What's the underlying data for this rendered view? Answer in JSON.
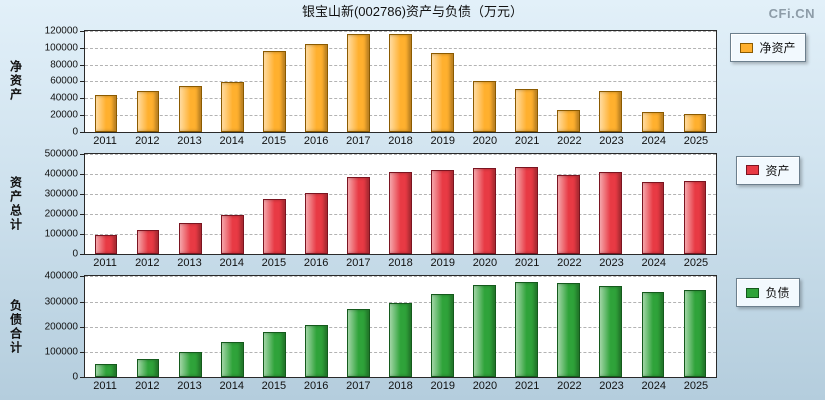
{
  "page": {
    "title": "银宝山新(002786)资产与负债（万元）",
    "logo": "CFi.CN"
  },
  "chart_data": [
    {
      "type": "bar",
      "ylabel": "净资产",
      "legend": "净资产",
      "color": "#FFB02E",
      "border_color": "#8B5A00",
      "ylim": [
        0,
        120000
      ],
      "yticks": [
        0,
        20000,
        40000,
        60000,
        80000,
        100000,
        120000
      ],
      "categories": [
        "2011",
        "2012",
        "2013",
        "2014",
        "2015",
        "2016",
        "2017",
        "2018",
        "2019",
        "2020",
        "2021",
        "2022",
        "2023",
        "2024",
        "2025"
      ],
      "values": [
        44000,
        48000,
        54000,
        59000,
        96000,
        105000,
        116000,
        117000,
        94000,
        61000,
        51000,
        26000,
        49000,
        24000,
        21000
      ]
    },
    {
      "type": "bar",
      "ylabel": "资产总计",
      "legend": "资产",
      "color": "#E83A44",
      "border_color": "#7A1420",
      "ylim": [
        0,
        500000
      ],
      "yticks": [
        0,
        100000,
        200000,
        300000,
        400000,
        500000
      ],
      "categories": [
        "2011",
        "2012",
        "2013",
        "2014",
        "2015",
        "2016",
        "2017",
        "2018",
        "2019",
        "2020",
        "2021",
        "2022",
        "2023",
        "2024",
        "2025"
      ],
      "values": [
        95000,
        120000,
        155000,
        195000,
        275000,
        305000,
        385000,
        410000,
        420000,
        428000,
        432000,
        395000,
        410000,
        360000,
        365000
      ]
    },
    {
      "type": "bar",
      "ylabel": "负债合计",
      "legend": "负债",
      "color": "#2FA33A",
      "border_color": "#145A1C",
      "ylim": [
        0,
        400000
      ],
      "yticks": [
        0,
        100000,
        200000,
        300000,
        400000
      ],
      "categories": [
        "2011",
        "2012",
        "2013",
        "2014",
        "2015",
        "2016",
        "2017",
        "2018",
        "2019",
        "2020",
        "2021",
        "2022",
        "2023",
        "2024",
        "2025"
      ],
      "values": [
        50000,
        72000,
        100000,
        138000,
        178000,
        205000,
        272000,
        293000,
        328000,
        365000,
        378000,
        373000,
        362000,
        338000,
        345000
      ]
    }
  ]
}
